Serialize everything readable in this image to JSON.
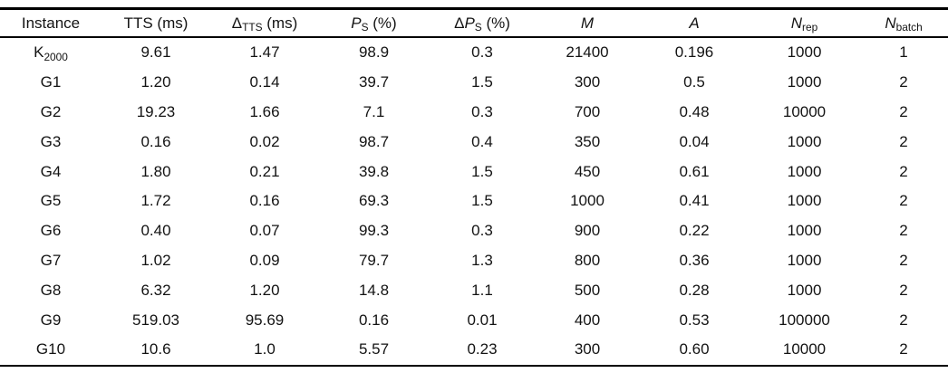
{
  "colors": {
    "background": "#ffffff",
    "text": "#131313",
    "rule": "#000000"
  },
  "table": {
    "headers": [
      {
        "prefix": "",
        "base": "Instance",
        "sub": "",
        "rest": ""
      },
      {
        "prefix": "",
        "base": "TTS",
        "sub": "",
        "rest": " (ms)"
      },
      {
        "prefix": "",
        "base": "Δ",
        "sub": "TTS",
        "rest": " (ms)"
      },
      {
        "prefix": "",
        "base": "P",
        "sub": "S",
        "rest": " (%)"
      },
      {
        "prefix": "Δ",
        "base": "P",
        "sub": "S",
        "rest": " (%)"
      },
      {
        "prefix": "",
        "base": "M",
        "sub": "",
        "rest": ""
      },
      {
        "prefix": "",
        "base": "A",
        "sub": "",
        "rest": ""
      },
      {
        "prefix": "",
        "base": "N",
        "sub": "rep",
        "rest": ""
      },
      {
        "prefix": "",
        "base": "N",
        "sub": "batch",
        "rest": ""
      }
    ],
    "rows": [
      {
        "instance": {
          "base": "K",
          "sub": "2000"
        },
        "values": [
          "9.61",
          "1.47",
          "98.9",
          "0.3",
          "21400",
          "0.196",
          "1000",
          "1"
        ]
      },
      {
        "instance": {
          "base": "G1",
          "sub": ""
        },
        "values": [
          "1.20",
          "0.14",
          "39.7",
          "1.5",
          "300",
          "0.5",
          "1000",
          "2"
        ]
      },
      {
        "instance": {
          "base": "G2",
          "sub": ""
        },
        "values": [
          "19.23",
          "1.66",
          "7.1",
          "0.3",
          "700",
          "0.48",
          "10000",
          "2"
        ]
      },
      {
        "instance": {
          "base": "G3",
          "sub": ""
        },
        "values": [
          "0.16",
          "0.02",
          "98.7",
          "0.4",
          "350",
          "0.04",
          "1000",
          "2"
        ]
      },
      {
        "instance": {
          "base": "G4",
          "sub": ""
        },
        "values": [
          "1.80",
          "0.21",
          "39.8",
          "1.5",
          "450",
          "0.61",
          "1000",
          "2"
        ]
      },
      {
        "instance": {
          "base": "G5",
          "sub": ""
        },
        "values": [
          "1.72",
          "0.16",
          "69.3",
          "1.5",
          "1000",
          "0.41",
          "1000",
          "2"
        ]
      },
      {
        "instance": {
          "base": "G6",
          "sub": ""
        },
        "values": [
          "0.40",
          "0.07",
          "99.3",
          "0.3",
          "900",
          "0.22",
          "1000",
          "2"
        ]
      },
      {
        "instance": {
          "base": "G7",
          "sub": ""
        },
        "values": [
          "1.02",
          "0.09",
          "79.7",
          "1.3",
          "800",
          "0.36",
          "1000",
          "2"
        ]
      },
      {
        "instance": {
          "base": "G8",
          "sub": ""
        },
        "values": [
          "6.32",
          "1.20",
          "14.8",
          "1.1",
          "500",
          "0.28",
          "1000",
          "2"
        ]
      },
      {
        "instance": {
          "base": "G9",
          "sub": ""
        },
        "values": [
          "519.03",
          "95.69",
          "0.16",
          "0.01",
          "400",
          "0.53",
          "100000",
          "2"
        ]
      },
      {
        "instance": {
          "base": "G10",
          "sub": ""
        },
        "values": [
          "10.6",
          "1.0",
          "5.57",
          "0.23",
          "300",
          "0.60",
          "10000",
          "2"
        ]
      }
    ]
  }
}
